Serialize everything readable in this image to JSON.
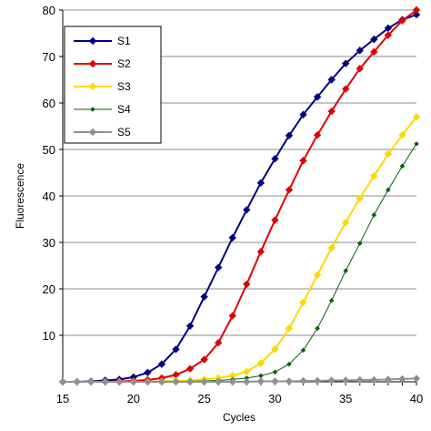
{
  "chart_data": {
    "type": "line",
    "xlabel": "Cycles",
    "ylabel": "Fluorescence",
    "xlim": [
      15,
      40
    ],
    "ylim": [
      0,
      80
    ],
    "xticks": [
      15,
      20,
      25,
      30,
      35,
      40
    ],
    "yticks": [
      10,
      20,
      30,
      40,
      50,
      60,
      70,
      80
    ],
    "grid": "horizontal",
    "legend_position": "top-left",
    "x": [
      15,
      16,
      17,
      18,
      19,
      20,
      21,
      22,
      23,
      24,
      25,
      26,
      27,
      28,
      29,
      30,
      31,
      32,
      33,
      34,
      35,
      36,
      37,
      38,
      39,
      40
    ],
    "series": [
      {
        "name": "S1",
        "color": "#000080",
        "marker": "diamond",
        "line_width": 2,
        "values": [
          0,
          0,
          0.1,
          0.3,
          0.5,
          1.0,
          2.0,
          3.8,
          7.0,
          12.0,
          18.3,
          24.6,
          31.0,
          37.0,
          42.8,
          48.0,
          53.0,
          57.5,
          61.3,
          65.0,
          68.5,
          71.3,
          73.7,
          76.1,
          77.9,
          79.0
        ]
      },
      {
        "name": "S2",
        "color": "#e00000",
        "marker": "diamond",
        "line_width": 2,
        "values": [
          0,
          0,
          0,
          0,
          0.1,
          0.2,
          0.4,
          0.8,
          1.5,
          2.8,
          4.8,
          8.4,
          14.2,
          21.0,
          28.0,
          34.8,
          41.3,
          47.6,
          53.1,
          58.2,
          63.0,
          67.4,
          71.0,
          74.6,
          77.7,
          80.0
        ]
      },
      {
        "name": "S3",
        "color": "#ffd700",
        "marker": "diamond",
        "line_width": 2,
        "values": [
          0,
          0,
          0,
          0,
          0,
          0,
          0,
          0.1,
          0.2,
          0.3,
          0.5,
          0.8,
          1.3,
          2.2,
          4.0,
          7.0,
          11.5,
          17.1,
          23.0,
          28.8,
          34.3,
          39.5,
          44.3,
          49.0,
          53.1,
          57.0
        ]
      },
      {
        "name": "S4",
        "color": "#006400",
        "marker": "small-diamond",
        "line_width": 1,
        "values": [
          0,
          0,
          0,
          0,
          0,
          0,
          0,
          0,
          0,
          0.1,
          0.2,
          0.3,
          0.5,
          0.8,
          1.3,
          2.1,
          3.8,
          6.8,
          11.5,
          17.5,
          23.9,
          29.8,
          35.9,
          41.3,
          46.4,
          51.2
        ]
      },
      {
        "name": "S5",
        "color": "#909090",
        "marker": "diamond",
        "line_width": 2,
        "values": [
          0,
          0,
          0,
          0,
          0,
          0,
          0,
          0,
          0,
          0,
          0,
          0,
          0,
          0,
          0.1,
          0.1,
          0.1,
          0.2,
          0.2,
          0.3,
          0.3,
          0.4,
          0.4,
          0.5,
          0.6,
          0.7
        ]
      }
    ]
  }
}
